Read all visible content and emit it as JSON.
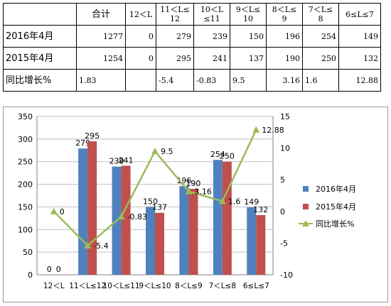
{
  "table": {
    "columns": [
      "",
      "合计",
      "12＜L",
      "11＜L≤\n12",
      "10＜L\n≤11",
      "9＜L≤\n10",
      "8＜L≤\n9",
      "7＜L≤\n8",
      "6≤L≤7"
    ],
    "rows": [
      {
        "label": "2016年4月",
        "values": [
          "1277",
          "0",
          "279",
          "239",
          "150",
          "196",
          "254",
          "149"
        ]
      },
      {
        "label": "2015年4月",
        "values": [
          "1254",
          "0",
          "295",
          "241",
          "137",
          "190",
          "250",
          "132"
        ]
      },
      {
        "label": "同比增长%",
        "values": [
          "1.83",
          "",
          "-5.4",
          "-0.83",
          "9.5",
          "3.16",
          "1.6",
          "12.88"
        ]
      }
    ]
  },
  "chart_data": {
    "type": "bar",
    "categories": [
      "12＜L",
      "11＜L≤12",
      "10＜L≤11",
      "9＜L≤10",
      "8＜L≤9",
      "7＜L≤8",
      "6≤L≤7"
    ],
    "series": [
      {
        "name": "2016年4月",
        "type": "bar",
        "axis": "left",
        "color": "#4F81BD",
        "values": [
          0,
          279,
          239,
          150,
          196,
          254,
          149
        ]
      },
      {
        "name": "2015年4月",
        "type": "bar",
        "axis": "left",
        "color": "#C0504D",
        "values": [
          0,
          295,
          241,
          137,
          190,
          250,
          132
        ]
      },
      {
        "name": "同比增长%",
        "type": "line",
        "axis": "right",
        "color": "#9BBB59",
        "marker": "triangle",
        "values": [
          0,
          -5.4,
          -0.83,
          9.5,
          3.16,
          1.6,
          12.88
        ]
      }
    ],
    "y_left": {
      "min": 0,
      "max": 350,
      "ticks": [
        0,
        50,
        100,
        150,
        200,
        250,
        300,
        350
      ]
    },
    "y_right": {
      "min": -10,
      "max": 15,
      "ticks": [
        -10,
        -5,
        0,
        5,
        10,
        15
      ]
    },
    "grid": true,
    "legend_position": "right"
  }
}
